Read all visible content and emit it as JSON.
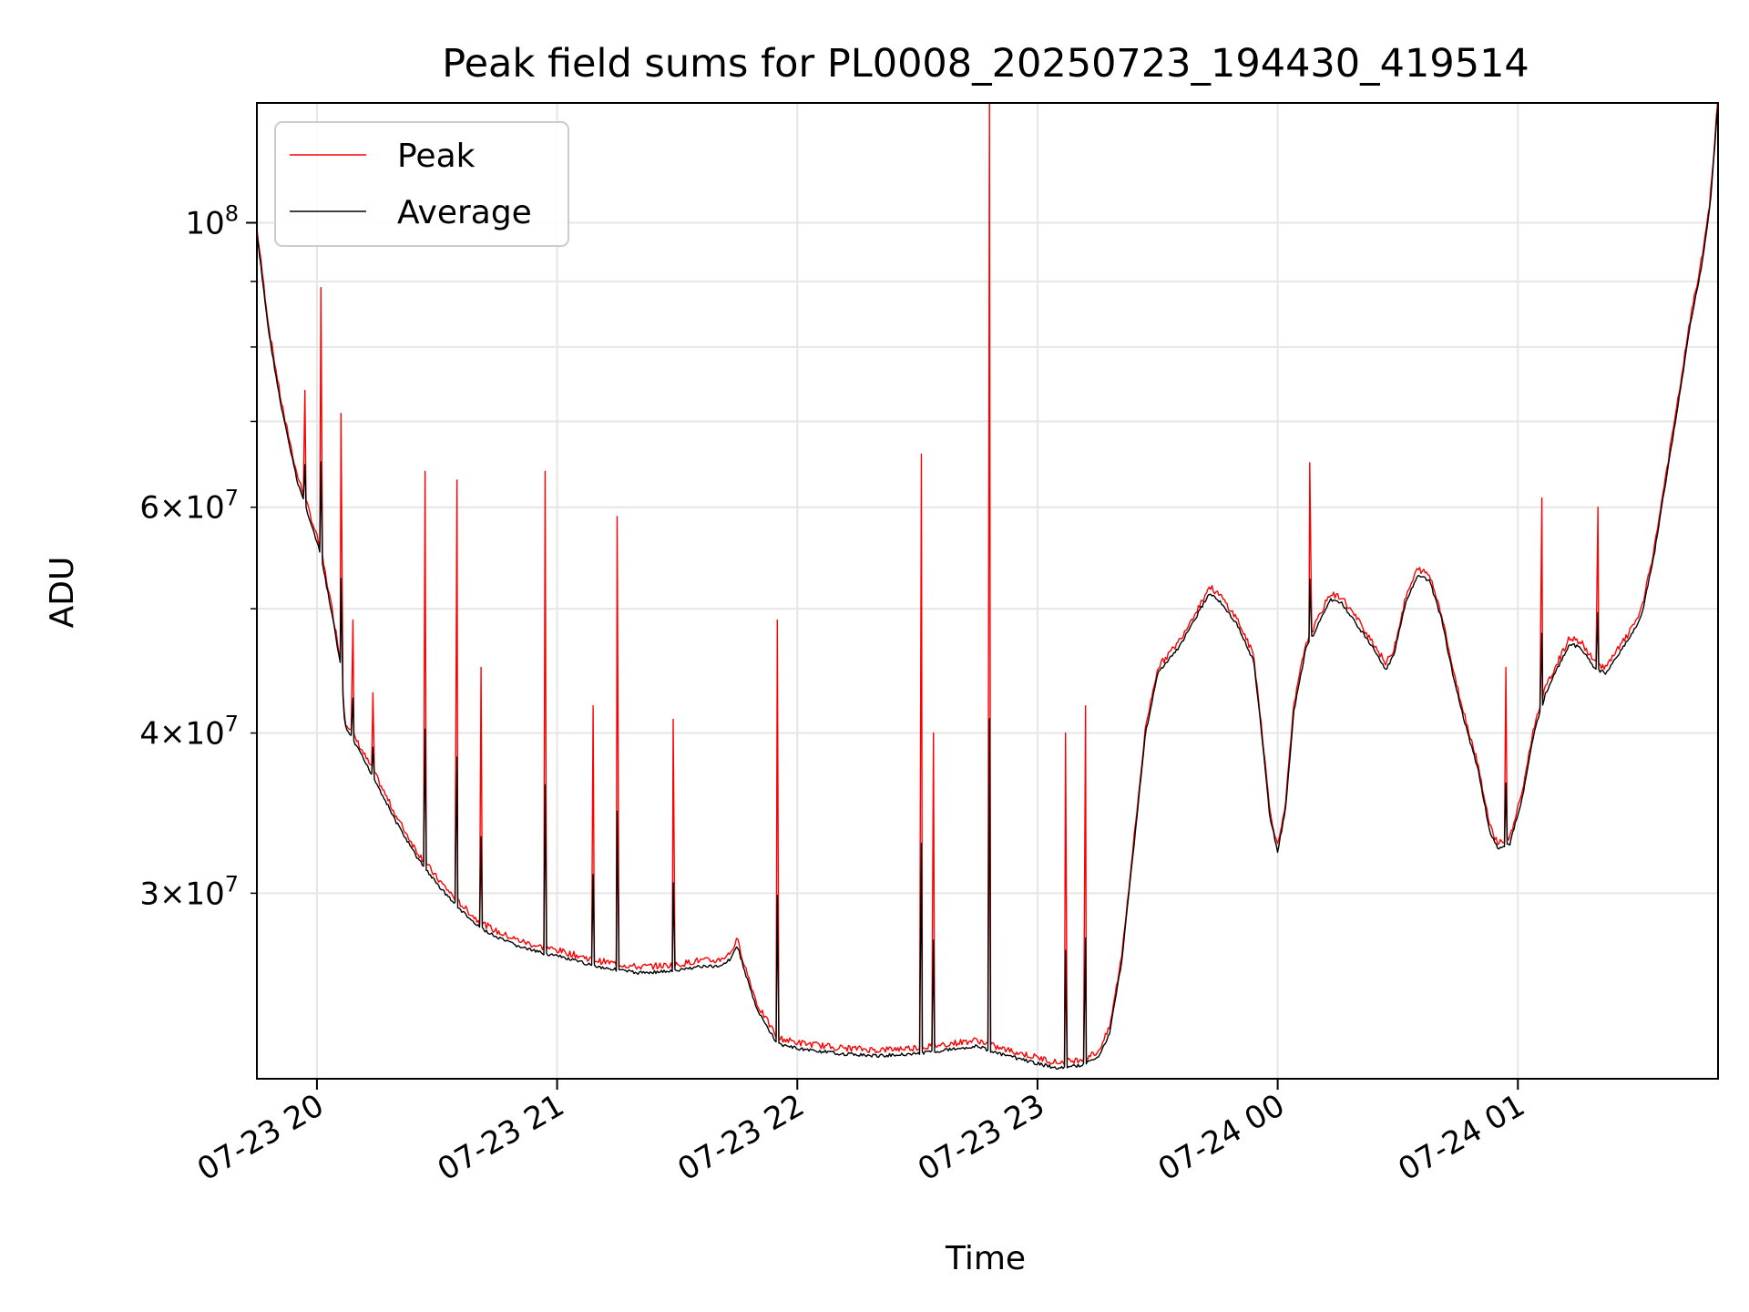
{
  "chart_data": {
    "type": "line",
    "title": "Peak field sums for PL0008_20250723_194430_419514",
    "xlabel": "Time",
    "ylabel": "ADU",
    "y_scale": "log",
    "x_unit": "datetime",
    "xlim": [
      "2025-07-23 19:45:00",
      "2025-07-24 01:50:00"
    ],
    "ylim": [
      21500000,
      124000000
    ],
    "x_ticks": [
      {
        "label": "07-23 20",
        "time": "2025-07-23 20:00"
      },
      {
        "label": "07-23 21",
        "time": "2025-07-23 21:00"
      },
      {
        "label": "07-23 22",
        "time": "2025-07-23 22:00"
      },
      {
        "label": "07-23 23",
        "time": "2025-07-23 23:00"
      },
      {
        "label": "07-24 00",
        "time": "2025-07-24 00:00"
      },
      {
        "label": "07-24 01",
        "time": "2025-07-24 01:00"
      }
    ],
    "y_major_ticks": [
      {
        "value": 100000000,
        "base": "10",
        "exp": "8"
      }
    ],
    "y_minor_ticks": [
      {
        "value": 30000000,
        "mant": "3",
        "exp": "7"
      },
      {
        "value": 40000000,
        "mant": "4",
        "exp": "7"
      },
      {
        "value": 60000000,
        "mant": "6",
        "exp": "7"
      },
      {
        "value": 50000000,
        "mant": "",
        "exp": ""
      },
      {
        "value": 70000000,
        "mant": "",
        "exp": ""
      },
      {
        "value": 80000000,
        "mant": "",
        "exp": ""
      },
      {
        "value": 90000000,
        "mant": "",
        "exp": ""
      }
    ],
    "grid": true,
    "legend_position": "top-left",
    "series": [
      {
        "name": "Peak",
        "color": "#ff0000"
      },
      {
        "name": "Average",
        "color": "#000000"
      }
    ],
    "average_curve": [
      [
        "2025-07-23 19:45",
        98000000
      ],
      [
        "2025-07-23 19:48",
        82000000
      ],
      [
        "2025-07-23 19:51",
        72000000
      ],
      [
        "2025-07-23 19:55",
        63000000
      ],
      [
        "2025-07-23 19:58",
        59000000
      ],
      [
        "2025-07-23 20:01",
        55000000
      ],
      [
        "2025-07-23 20:04",
        49000000
      ],
      [
        "2025-07-23 20:06",
        45000000
      ],
      [
        "2025-07-23 20:07",
        40500000
      ],
      [
        "2025-07-23 20:10",
        39000000
      ],
      [
        "2025-07-23 20:15",
        36500000
      ],
      [
        "2025-07-23 20:20",
        34000000
      ],
      [
        "2025-07-23 20:25",
        32000000
      ],
      [
        "2025-07-23 20:30",
        30500000
      ],
      [
        "2025-07-23 20:35",
        29300000
      ],
      [
        "2025-07-23 20:40",
        28300000
      ],
      [
        "2025-07-23 20:45",
        27700000
      ],
      [
        "2025-07-23 20:50",
        27300000
      ],
      [
        "2025-07-23 20:55",
        27000000
      ],
      [
        "2025-07-23 21:00",
        26800000
      ],
      [
        "2025-07-23 21:10",
        26300000
      ],
      [
        "2025-07-23 21:20",
        26000000
      ],
      [
        "2025-07-23 21:30",
        26100000
      ],
      [
        "2025-07-23 21:35",
        26300000
      ],
      [
        "2025-07-23 21:40",
        26300000
      ],
      [
        "2025-07-23 21:43",
        26600000
      ],
      [
        "2025-07-23 21:45",
        27300000
      ],
      [
        "2025-07-23 21:47",
        26000000
      ],
      [
        "2025-07-23 21:50",
        24300000
      ],
      [
        "2025-07-23 21:55",
        22900000
      ],
      [
        "2025-07-23 22:00",
        22700000
      ],
      [
        "2025-07-23 22:10",
        22500000
      ],
      [
        "2025-07-23 22:20",
        22400000
      ],
      [
        "2025-07-23 22:30",
        22500000
      ],
      [
        "2025-07-23 22:40",
        22700000
      ],
      [
        "2025-07-23 22:45",
        22800000
      ],
      [
        "2025-07-23 22:50",
        22500000
      ],
      [
        "2025-07-23 23:00",
        22100000
      ],
      [
        "2025-07-23 23:05",
        21900000
      ],
      [
        "2025-07-23 23:10",
        22000000
      ],
      [
        "2025-07-23 23:15",
        22300000
      ],
      [
        "2025-07-23 23:18",
        23300000
      ],
      [
        "2025-07-23 23:21",
        26500000
      ],
      [
        "2025-07-23 23:24",
        32500000
      ],
      [
        "2025-07-23 23:27",
        40000000
      ],
      [
        "2025-07-23 23:30",
        44500000
      ],
      [
        "2025-07-23 23:35",
        46500000
      ],
      [
        "2025-07-23 23:40",
        49500000
      ],
      [
        "2025-07-23 23:43",
        51500000
      ],
      [
        "2025-07-23 23:46",
        50500000
      ],
      [
        "2025-07-23 23:50",
        48500000
      ],
      [
        "2025-07-23 23:54",
        45500000
      ],
      [
        "2025-07-23 23:56",
        40000000
      ],
      [
        "2025-07-23 23:58",
        34500000
      ],
      [
        "2025-07-24 00:00",
        32300000
      ],
      [
        "2025-07-24 00:02",
        35000000
      ],
      [
        "2025-07-24 00:04",
        41500000
      ],
      [
        "2025-07-24 00:07",
        46500000
      ],
      [
        "2025-07-24 00:10",
        48500000
      ],
      [
        "2025-07-24 00:13",
        50800000
      ],
      [
        "2025-07-24 00:16",
        50500000
      ],
      [
        "2025-07-24 00:20",
        48500000
      ],
      [
        "2025-07-24 00:24",
        46500000
      ],
      [
        "2025-07-24 00:27",
        44800000
      ],
      [
        "2025-07-24 00:29",
        46000000
      ],
      [
        "2025-07-24 00:32",
        50500000
      ],
      [
        "2025-07-24 00:35",
        53200000
      ],
      [
        "2025-07-24 00:38",
        52500000
      ],
      [
        "2025-07-24 00:41",
        49000000
      ],
      [
        "2025-07-24 00:44",
        44000000
      ],
      [
        "2025-07-24 00:47",
        40500000
      ],
      [
        "2025-07-24 00:50",
        37500000
      ],
      [
        "2025-07-24 00:53",
        33500000
      ],
      [
        "2025-07-24 00:55",
        32500000
      ],
      [
        "2025-07-24 00:58",
        32800000
      ],
      [
        "2025-07-24 01:01",
        35500000
      ],
      [
        "2025-07-24 01:04",
        40000000
      ],
      [
        "2025-07-24 01:07",
        43000000
      ],
      [
        "2025-07-24 01:10",
        45000000
      ],
      [
        "2025-07-24 01:13",
        47000000
      ],
      [
        "2025-07-24 01:16",
        46500000
      ],
      [
        "2025-07-24 01:19",
        45000000
      ],
      [
        "2025-07-24 01:22",
        44500000
      ],
      [
        "2025-07-24 01:25",
        46000000
      ],
      [
        "2025-07-24 01:28",
        47500000
      ],
      [
        "2025-07-24 01:31",
        49500000
      ],
      [
        "2025-07-24 01:34",
        55000000
      ],
      [
        "2025-07-24 01:37",
        63000000
      ],
      [
        "2025-07-24 01:40",
        72000000
      ],
      [
        "2025-07-24 01:43",
        83000000
      ],
      [
        "2025-07-24 01:46",
        93000000
      ],
      [
        "2025-07-24 01:48",
        103000000
      ],
      [
        "2025-07-24 01:50",
        124000000
      ]
    ],
    "peak_spikes": [
      [
        "2025-07-23 19:52",
        70000000
      ],
      [
        "2025-07-23 19:57",
        74000000
      ],
      [
        "2025-07-23 20:01",
        89000000
      ],
      [
        "2025-07-23 20:06",
        71000000
      ],
      [
        "2025-07-23 20:09",
        49000000
      ],
      [
        "2025-07-23 20:14",
        43000000
      ],
      [
        "2025-07-23 20:27",
        64000000
      ],
      [
        "2025-07-23 20:35",
        63000000
      ],
      [
        "2025-07-23 20:41",
        45000000
      ],
      [
        "2025-07-23 20:57",
        64000000
      ],
      [
        "2025-07-23 21:09",
        42000000
      ],
      [
        "2025-07-23 21:15",
        59000000
      ],
      [
        "2025-07-23 21:29",
        41000000
      ],
      [
        "2025-07-23 21:55",
        49000000
      ],
      [
        "2025-07-23 22:31",
        66000000
      ],
      [
        "2025-07-23 22:34",
        40000000
      ],
      [
        "2025-07-23 22:48",
        124000000
      ],
      [
        "2025-07-23 23:07",
        40000000
      ],
      [
        "2025-07-23 23:12",
        42000000
      ],
      [
        "2025-07-24 00:08",
        65000000
      ],
      [
        "2025-07-24 00:57",
        45000000
      ],
      [
        "2025-07-24 01:06",
        61000000
      ],
      [
        "2025-07-24 01:20",
        60000000
      ]
    ]
  }
}
